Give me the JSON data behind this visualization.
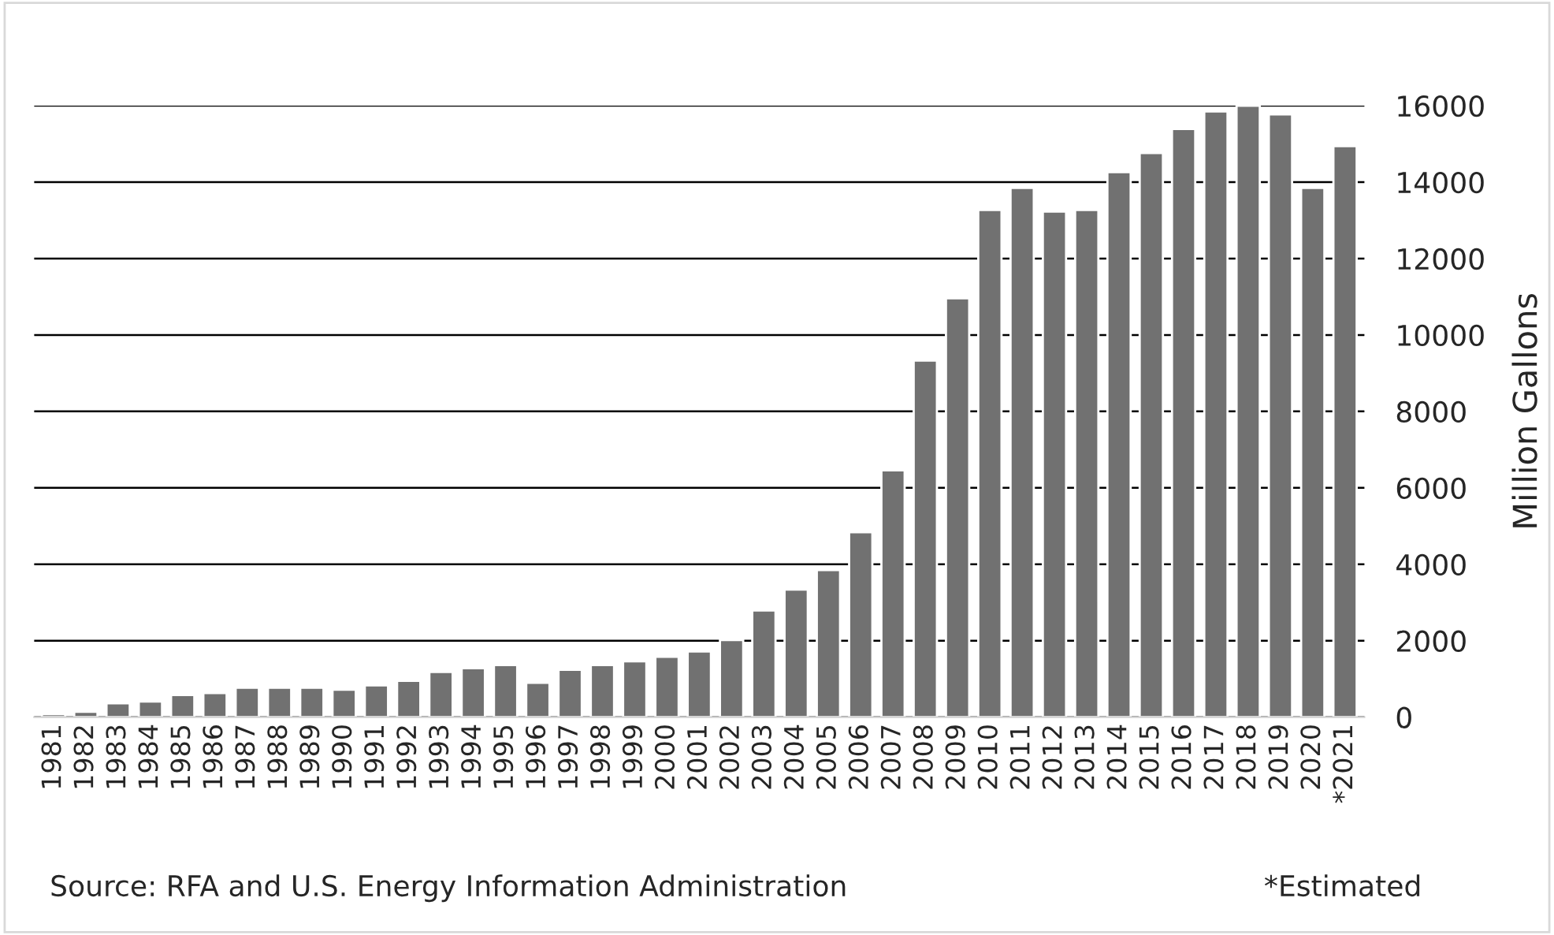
{
  "chart_data": {
    "type": "bar",
    "categories": [
      "1981",
      "1982",
      "1983",
      "1984",
      "1985",
      "1986",
      "1987",
      "1988",
      "1989",
      "1990",
      "1991",
      "1992",
      "1993",
      "1994",
      "1995",
      "1996",
      "1997",
      "1998",
      "1999",
      "2000",
      "2001",
      "2002",
      "2003",
      "2004",
      "2005",
      "2006",
      "2007",
      "2008",
      "2009",
      "2010",
      "2011",
      "2012",
      "2013",
      "2014",
      "2015",
      "2016",
      "2017",
      "2018",
      "2019",
      "2020",
      "*2021"
    ],
    "values": [
      80,
      140,
      360,
      410,
      580,
      630,
      770,
      770,
      770,
      720,
      830,
      950,
      1180,
      1280,
      1360,
      900,
      1240,
      1360,
      1460,
      1580,
      1720,
      2020,
      2790,
      3340,
      3850,
      4840,
      6460,
      9330,
      10960,
      13270,
      13850,
      13230,
      13270,
      14260,
      14760,
      15390,
      15850,
      16000,
      15770,
      13850,
      14940
    ],
    "color": "#717171",
    "ylabel": "Million Gallons",
    "ylim": [
      0,
      16000
    ],
    "yticks": [
      0,
      2000,
      4000,
      6000,
      8000,
      10000,
      12000,
      14000,
      16000
    ],
    "grid": "y",
    "annotations": [
      "Source: RFA and U.S. Energy Information Administration",
      "*Estimated"
    ]
  }
}
